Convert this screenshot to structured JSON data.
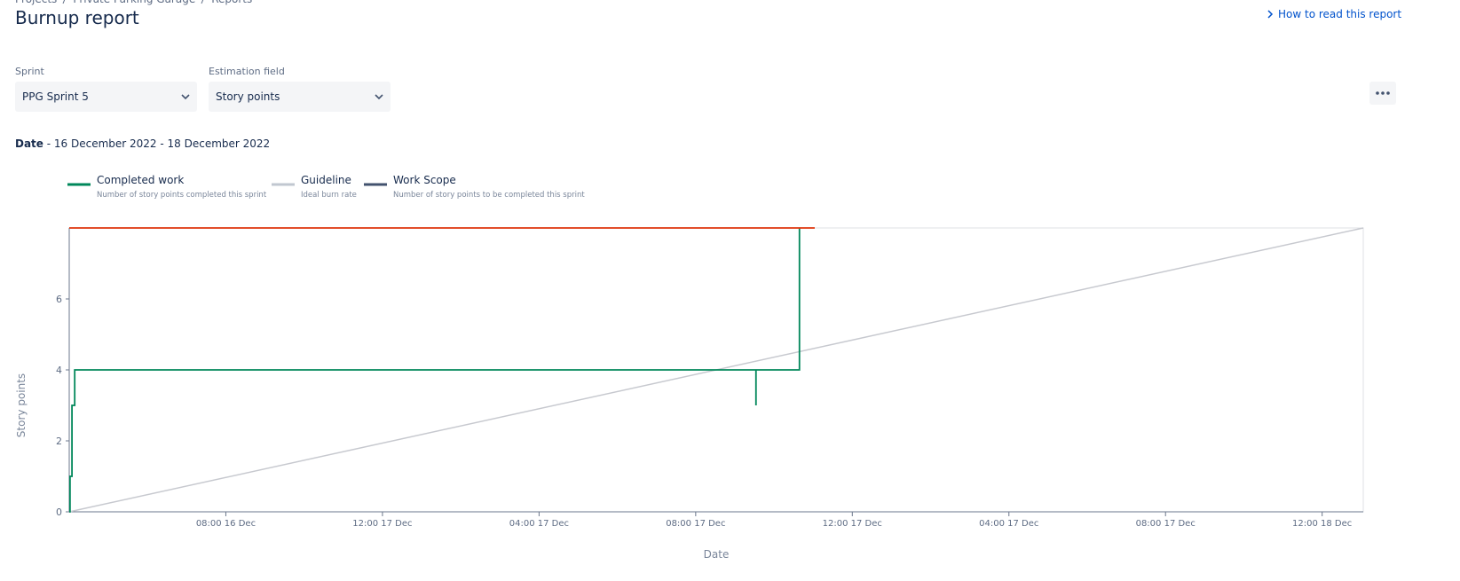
{
  "header": {
    "breadcrumbs": [
      "Projects",
      "Private Parking Garage",
      "Reports"
    ],
    "title": "Burnup report",
    "help_link": "How to read this report"
  },
  "filters": [
    {
      "label": "Sprint",
      "value": "PPG Sprint 5"
    },
    {
      "label": "Estimation field",
      "value": "Story points"
    }
  ],
  "date_range": {
    "label": "Date",
    "text": " - 16 December 2022 - 18 December 2022"
  },
  "chart_data": {
    "type": "line",
    "x_label": "Date",
    "y_label": "Story points",
    "xlim": [
      16,
      49.05
    ],
    "ylim": [
      0,
      8
    ],
    "xticks": [
      {
        "value": 20,
        "label": "08:00 16 Dec"
      },
      {
        "value": 24,
        "label": "12:00 17 Dec"
      },
      {
        "value": 28,
        "label": "04:00 17 Dec"
      },
      {
        "value": 32,
        "label": "08:00 17 Dec"
      },
      {
        "value": 36,
        "label": "12:00 17 Dec"
      },
      {
        "value": 40,
        "label": "04:00 17 Dec"
      },
      {
        "value": 44,
        "label": "08:00 17 Dec"
      },
      {
        "value": 48,
        "label": "12:00 18 Dec"
      }
    ],
    "yticks": [
      0,
      2,
      4,
      6
    ],
    "series": [
      {
        "name": "Completed work",
        "description": "Number of story points completed this sprint",
        "color": "#00875a",
        "legend_color": "#00875a",
        "x": [
          16,
          16.02,
          16.02,
          16.07,
          16.07,
          16.14,
          16.14,
          33.54,
          33.54,
          33.54,
          34.65,
          34.65
        ],
        "values": [
          0,
          0,
          1,
          1,
          3,
          3,
          4,
          4,
          3,
          4,
          4,
          8
        ]
      },
      {
        "name": "Guideline",
        "description": "Ideal burn rate",
        "color": "#c7c9cf",
        "legend_color": "#c1c7d0",
        "x": [
          16,
          49.05
        ],
        "values": [
          0,
          8
        ]
      },
      {
        "name": "Work Scope",
        "description": "Number of story points to be completed this sprint",
        "color": "#de350b",
        "legend_color": "#42526e",
        "x": [
          16,
          35.04
        ],
        "values": [
          8,
          8
        ]
      }
    ]
  }
}
